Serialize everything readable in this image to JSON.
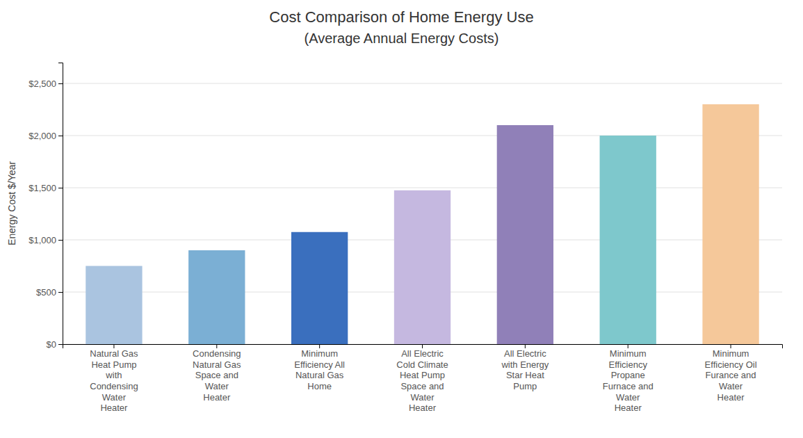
{
  "chart_data": {
    "type": "bar",
    "title": "Cost Comparison of Home Energy Use",
    "subtitle": "(Average Annual Energy Costs)",
    "ylabel": "Energy Cost $/Year",
    "categories": [
      "Natural Gas\nHeat Pump\nwith\nCondensing\nWater\nHeater",
      "Condensing\nNatural Gas\nSpace and\nWater\nHeater",
      "Minimum\nEfficiency All\nNatural Gas\nHome",
      "All Electric\nCold Climate\nHeat Pump\nSpace and\nWater\nHeater",
      "All Electric\nwith Energy\nStar Heat\nPump",
      "Minimum\nEfficiency\nPropane\nFurnace and\nWater\nHeater",
      "Minimum\nEfficiency Oil\nFurance and\nWater\nHeater"
    ],
    "values": [
      750,
      900,
      1075,
      1475,
      2100,
      2000,
      2300
    ],
    "colors": [
      "#aac4e0",
      "#7bafd4",
      "#3a6fbe",
      "#c5b8e0",
      "#9080b8",
      "#7ec8cc",
      "#f5c89a"
    ],
    "ylim": [
      0,
      2700
    ],
    "yticks": [
      {
        "value": 0,
        "label": "$0"
      },
      {
        "value": 500,
        "label": "$500"
      },
      {
        "value": 1000,
        "label": "$1,000"
      },
      {
        "value": 1500,
        "label": "$1,500"
      },
      {
        "value": 2000,
        "label": "$2,000"
      },
      {
        "value": 2500,
        "label": "$2,500"
      }
    ],
    "grid": true
  }
}
